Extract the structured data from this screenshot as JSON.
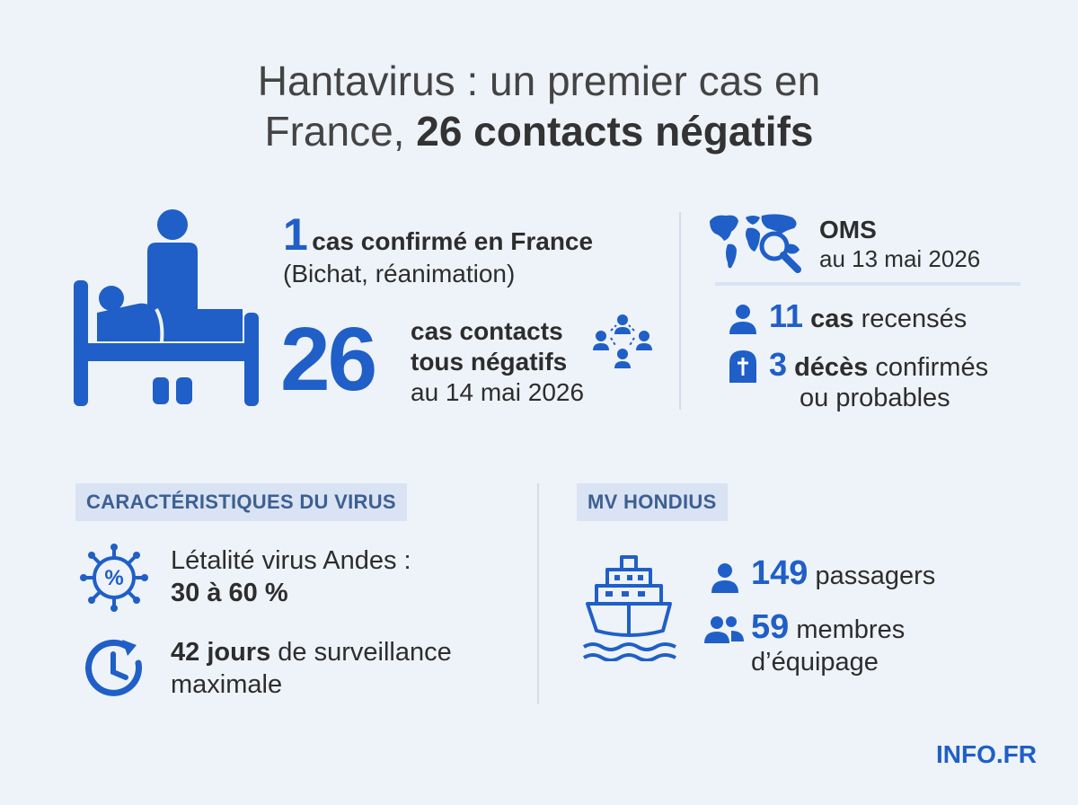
{
  "title": {
    "line1": "Hantavirus : un premier cas en",
    "line2_regular": "France, ",
    "line2_bold": "26 contacts négatifs"
  },
  "france": {
    "confirmed_number": "1",
    "confirmed_text": "cas confirmé en France",
    "confirmed_detail": "(Bichat, réanimation)",
    "contacts_number": "26",
    "contacts_line1": "cas contacts",
    "contacts_line2": "tous négatifs",
    "contacts_date": "au 14 mai 2026"
  },
  "oms": {
    "label": "OMS",
    "date": "au 13 mai 2026",
    "cases_number": "11",
    "cases_bold": "cas",
    "cases_text": "recensés",
    "deaths_number": "3",
    "deaths_bold": "décès",
    "deaths_text": "confirmés",
    "deaths_line2": "ou probables"
  },
  "virus": {
    "header": "CARACTÉRISTIQUES DU VIRUS",
    "lethality_label": "Létalité virus Andes :",
    "lethality_value": "30 à 60 %",
    "surveillance_bold": "42 jours",
    "surveillance_text": "de surveillance",
    "surveillance_line2": "maximale"
  },
  "ship": {
    "header": "MV HONDIUS",
    "passengers_number": "149",
    "passengers_text": "passagers",
    "crew_number": "59",
    "crew_text": "membres",
    "crew_line2": "d’équipage"
  },
  "brand": "INFO.FR",
  "colors": {
    "accent": "#1f5fc7",
    "background": "#eef3f9",
    "header_bg": "#d9e3f3"
  },
  "icons": [
    "hospital-bed-icon",
    "contacts-network-icon",
    "world-map-search-icon",
    "person-icon",
    "cross-tombstone-icon",
    "virus-percent-icon",
    "clock-history-icon",
    "ship-icon",
    "person-icon",
    "group-icon"
  ]
}
